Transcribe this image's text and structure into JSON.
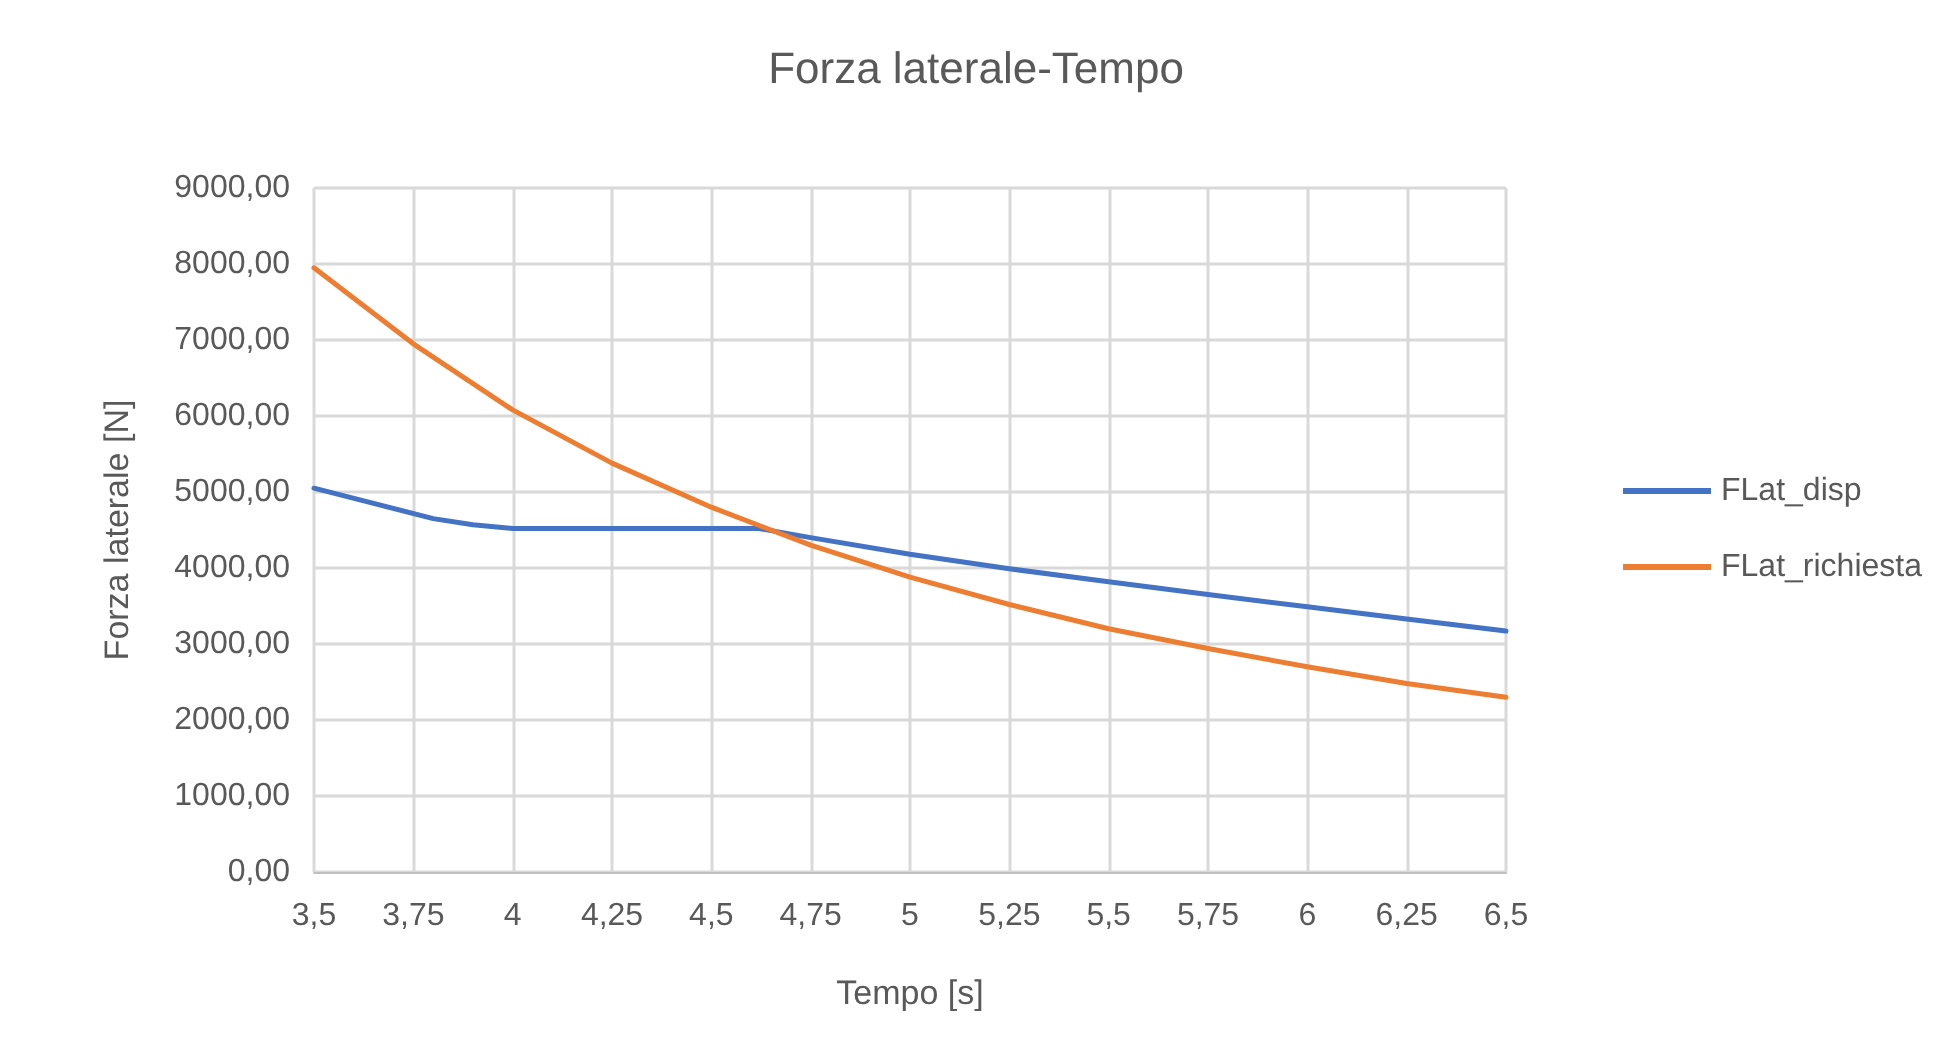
{
  "chart_data": {
    "type": "line",
    "title": "Forza laterale-Tempo",
    "xlabel": "Tempo [s]",
    "ylabel": "Forza laterale [N]",
    "series": [
      {
        "name": "FLat_disp",
        "color": "#4472c4",
        "x": [
          3.5,
          3.65,
          3.8,
          3.9,
          4.0,
          4.25,
          4.5,
          4.62,
          4.75,
          5.0,
          5.25,
          5.5,
          5.75,
          6.0,
          6.25,
          6.5
        ],
        "values": [
          5050,
          4850,
          4650,
          4570,
          4520,
          4520,
          4520,
          4520,
          4400,
          4180,
          3990,
          3820,
          3650,
          3490,
          3330,
          3170
        ]
      },
      {
        "name": "FLat_richiesta",
        "color": "#ed7d31",
        "x": [
          3.5,
          3.75,
          4.0,
          4.25,
          4.5,
          4.75,
          5.0,
          5.25,
          5.5,
          5.75,
          6.0,
          6.25,
          6.5
        ],
        "values": [
          7950,
          6950,
          6080,
          5380,
          4800,
          4300,
          3880,
          3520,
          3200,
          2940,
          2700,
          2480,
          2300
        ]
      }
    ],
    "xlim": [
      3.5,
      6.5
    ],
    "xticks": [
      {
        "value": 3.5,
        "label": "3,5"
      },
      {
        "value": 3.75,
        "label": "3,75"
      },
      4,
      {
        "value": 4.25,
        "label": "4,25"
      },
      {
        "value": 4.5,
        "label": "4,5"
      },
      {
        "value": 4.75,
        "label": "4,75"
      },
      5,
      {
        "value": 5.25,
        "label": "5,25"
      },
      {
        "value": 5.5,
        "label": "5,5"
      },
      {
        "value": 5.75,
        "label": "5,75"
      },
      6,
      {
        "value": 6.25,
        "label": "6,25"
      },
      {
        "value": 6.5,
        "label": "6,5"
      }
    ],
    "ylim": [
      0,
      9000
    ],
    "yticks": [
      {
        "value": 0,
        "label": "0,00"
      },
      {
        "value": 1000,
        "label": "1000,00"
      },
      {
        "value": 2000,
        "label": "2000,00"
      },
      {
        "value": 3000,
        "label": "3000,00"
      },
      {
        "value": 4000,
        "label": "4000,00"
      },
      {
        "value": 5000,
        "label": "5000,00"
      },
      {
        "value": 6000,
        "label": "6000,00"
      },
      {
        "value": 7000,
        "label": "7000,00"
      },
      {
        "value": 8000,
        "label": "8000,00"
      },
      {
        "value": 9000,
        "label": "9000,00"
      }
    ],
    "grid": true,
    "legend": "right",
    "marker": "none",
    "line_style": "solid"
  }
}
